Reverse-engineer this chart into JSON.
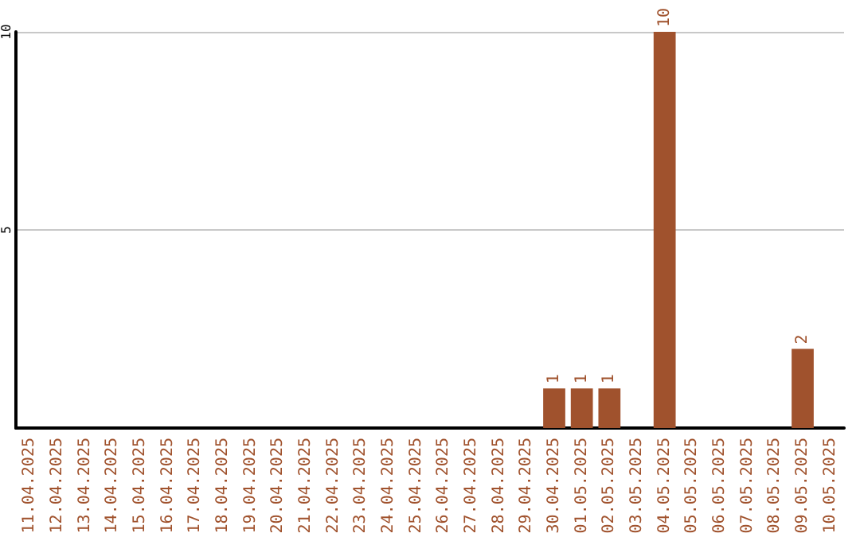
{
  "chart_data": {
    "type": "bar",
    "categories": [
      "11.04.2025",
      "12.04.2025",
      "13.04.2025",
      "14.04.2025",
      "15.04.2025",
      "16.04.2025",
      "17.04.2025",
      "18.04.2025",
      "19.04.2025",
      "20.04.2025",
      "21.04.2025",
      "22.04.2025",
      "23.04.2025",
      "24.04.2025",
      "25.04.2025",
      "26.04.2025",
      "27.04.2025",
      "28.04.2025",
      "29.04.2025",
      "30.04.2025",
      "01.05.2025",
      "02.05.2025",
      "03.05.2025",
      "04.05.2025",
      "05.05.2025",
      "06.05.2025",
      "07.05.2025",
      "08.05.2025",
      "09.05.2025",
      "10.05.2025"
    ],
    "values": [
      0,
      0,
      0,
      0,
      0,
      0,
      0,
      0,
      0,
      0,
      0,
      0,
      0,
      0,
      0,
      0,
      0,
      0,
      0,
      1,
      1,
      1,
      0,
      10,
      0,
      0,
      0,
      0,
      2,
      0
    ],
    "value_labels": [
      null,
      null,
      null,
      null,
      null,
      null,
      null,
      null,
      null,
      null,
      null,
      null,
      null,
      null,
      null,
      null,
      null,
      null,
      null,
      "1",
      "1",
      "1",
      null,
      "10",
      null,
      null,
      null,
      null,
      "2",
      null
    ],
    "color": "#a0522d",
    "ylim": [
      0,
      10
    ],
    "yticks": [
      {
        "value": 0,
        "label": null
      },
      5,
      10
    ],
    "grid": "y"
  }
}
